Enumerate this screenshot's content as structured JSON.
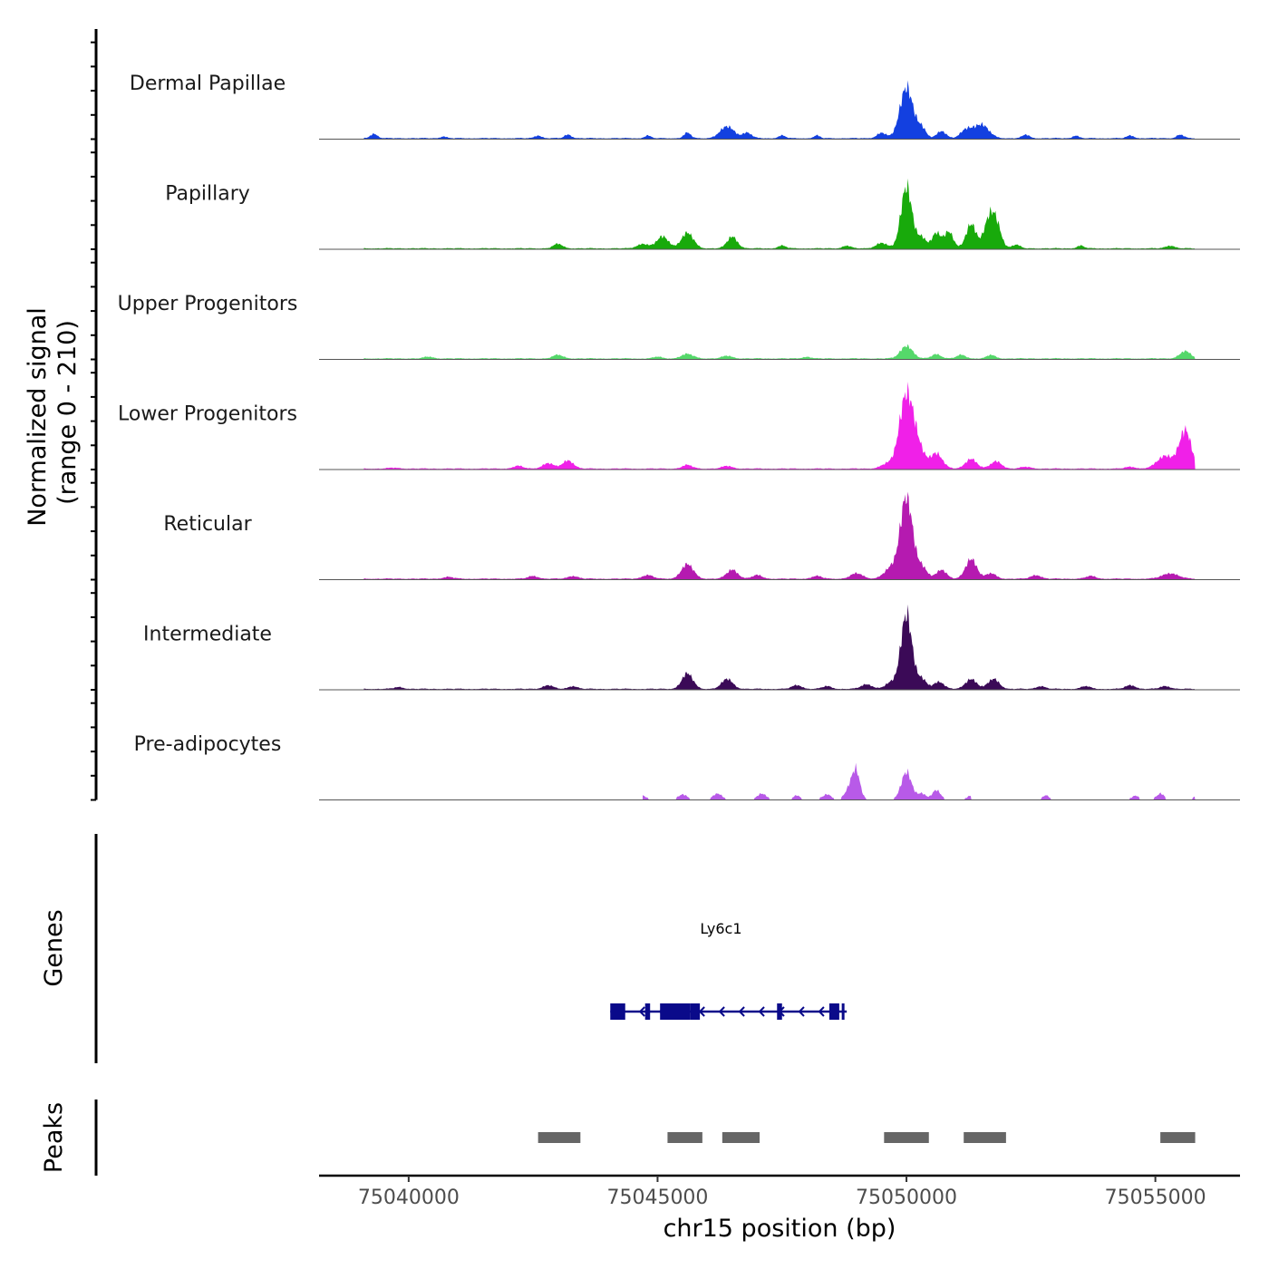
{
  "chart_data": {
    "type": "area",
    "title": "",
    "ylabel": "Normalized signal",
    "ylabel_range": "(range 0 - 210)",
    "xlabel": "chr15 position (bp)",
    "chromosome": "chr15",
    "xlim": [
      75038200,
      75056700
    ],
    "ylim": [
      0,
      210
    ],
    "x_ticks": [
      75040000,
      75045000,
      75050000,
      75055000
    ],
    "x_tick_labels": [
      "75040000",
      "75045000",
      "75050000",
      "75055000"
    ],
    "data_range": [
      75039100,
      75055800
    ],
    "tracks": [
      {
        "name": "Dermal Papillae",
        "color": "#1340e0",
        "peaks": [
          [
            75039300,
            0.05,
            70
          ],
          [
            75040700,
            0.02,
            60
          ],
          [
            75042600,
            0.03,
            70
          ],
          [
            75043200,
            0.04,
            70
          ],
          [
            75044800,
            0.03,
            60
          ],
          [
            75045600,
            0.06,
            70
          ],
          [
            75046400,
            0.13,
            140
          ],
          [
            75046800,
            0.06,
            90
          ],
          [
            75047500,
            0.03,
            70
          ],
          [
            75048200,
            0.03,
            60
          ],
          [
            75049500,
            0.06,
            90
          ],
          [
            75050000,
            0.56,
            130
          ],
          [
            75050300,
            0.11,
            90
          ],
          [
            75050700,
            0.08,
            90
          ],
          [
            75051200,
            0.09,
            110
          ],
          [
            75051500,
            0.15,
            150
          ],
          [
            75052400,
            0.04,
            70
          ],
          [
            75053400,
            0.03,
            60
          ],
          [
            75054500,
            0.03,
            70
          ],
          [
            75055500,
            0.04,
            70
          ]
        ]
      },
      {
        "name": "Papillary",
        "color": "#18aa0b",
        "peaks": [
          [
            75043000,
            0.05,
            90
          ],
          [
            75044700,
            0.05,
            110
          ],
          [
            75045100,
            0.13,
            120
          ],
          [
            75045600,
            0.17,
            120
          ],
          [
            75046500,
            0.13,
            100
          ],
          [
            75047500,
            0.03,
            80
          ],
          [
            75048800,
            0.03,
            80
          ],
          [
            75049500,
            0.06,
            110
          ],
          [
            75050000,
            0.68,
            110
          ],
          [
            75050300,
            0.12,
            90
          ],
          [
            75050600,
            0.17,
            90
          ],
          [
            75050850,
            0.18,
            90
          ],
          [
            75051300,
            0.27,
            100
          ],
          [
            75051650,
            0.28,
            100
          ],
          [
            75051800,
            0.26,
            100
          ],
          [
            75052200,
            0.04,
            80
          ],
          [
            75053500,
            0.03,
            70
          ],
          [
            75055300,
            0.03,
            90
          ]
        ]
      },
      {
        "name": "Upper Progenitors",
        "color": "#55d86a",
        "peaks": [
          [
            75040400,
            0.02,
            90
          ],
          [
            75043000,
            0.04,
            100
          ],
          [
            75045000,
            0.02,
            80
          ],
          [
            75045600,
            0.05,
            120
          ],
          [
            75046400,
            0.03,
            100
          ],
          [
            75048000,
            0.02,
            80
          ],
          [
            75050000,
            0.14,
            120
          ],
          [
            75050600,
            0.05,
            90
          ],
          [
            75051100,
            0.04,
            90
          ],
          [
            75051700,
            0.04,
            80
          ],
          [
            75055600,
            0.08,
            110
          ]
        ]
      },
      {
        "name": "Lower Progenitors",
        "color": "#f020e8",
        "peaks": [
          [
            75039700,
            0.01,
            100
          ],
          [
            75042200,
            0.03,
            100
          ],
          [
            75042800,
            0.06,
            110
          ],
          [
            75043200,
            0.09,
            110
          ],
          [
            75045600,
            0.04,
            100
          ],
          [
            75046400,
            0.03,
            100
          ],
          [
            75049600,
            0.05,
            120
          ],
          [
            75050000,
            0.82,
            140
          ],
          [
            75050250,
            0.18,
            120
          ],
          [
            75050600,
            0.17,
            120
          ],
          [
            75051300,
            0.11,
            110
          ],
          [
            75051800,
            0.08,
            110
          ],
          [
            75052400,
            0.02,
            100
          ],
          [
            75054500,
            0.02,
            100
          ],
          [
            75055200,
            0.14,
            160
          ],
          [
            75055600,
            0.42,
            120
          ]
        ]
      },
      {
        "name": "Reticular",
        "color": "#b51ab0",
        "peaks": [
          [
            75040800,
            0.02,
            100
          ],
          [
            75042500,
            0.03,
            100
          ],
          [
            75043300,
            0.03,
            100
          ],
          [
            75044800,
            0.04,
            110
          ],
          [
            75045600,
            0.16,
            120
          ],
          [
            75046500,
            0.1,
            110
          ],
          [
            75047000,
            0.04,
            100
          ],
          [
            75048200,
            0.03,
            100
          ],
          [
            75049000,
            0.06,
            120
          ],
          [
            75049700,
            0.12,
            140
          ],
          [
            75050000,
            0.9,
            120
          ],
          [
            75050300,
            0.13,
            110
          ],
          [
            75050700,
            0.1,
            100
          ],
          [
            75051300,
            0.22,
            110
          ],
          [
            75051700,
            0.06,
            100
          ],
          [
            75052600,
            0.04,
            100
          ],
          [
            75053700,
            0.03,
            100
          ],
          [
            75055300,
            0.06,
            160
          ]
        ]
      },
      {
        "name": "Intermediate",
        "color": "#3b0a57",
        "peaks": [
          [
            75039800,
            0.02,
            90
          ],
          [
            75042800,
            0.04,
            100
          ],
          [
            75043300,
            0.03,
            90
          ],
          [
            75045600,
            0.17,
            110
          ],
          [
            75046400,
            0.11,
            110
          ],
          [
            75047800,
            0.04,
            100
          ],
          [
            75048400,
            0.03,
            90
          ],
          [
            75049200,
            0.05,
            110
          ],
          [
            75049700,
            0.07,
            120
          ],
          [
            75050000,
            0.82,
            110
          ],
          [
            75050300,
            0.11,
            100
          ],
          [
            75050650,
            0.08,
            100
          ],
          [
            75051300,
            0.11,
            110
          ],
          [
            75051750,
            0.11,
            110
          ],
          [
            75052700,
            0.03,
            90
          ],
          [
            75053600,
            0.03,
            90
          ],
          [
            75054500,
            0.04,
            100
          ],
          [
            75055200,
            0.03,
            100
          ]
        ]
      },
      {
        "name": "Pre-adipocytes",
        "color": "#b85ae8",
        "visible_from": 75044700,
        "gaps": [
          [
            75047900,
            75048000
          ],
          [
            75051300,
            75052700
          ],
          [
            75053400,
            75054400
          ],
          [
            75055200,
            75055600
          ]
        ],
        "peaks": [
          [
            75044700,
            0.04,
            60
          ],
          [
            75045500,
            0.05,
            80
          ],
          [
            75046200,
            0.06,
            80
          ],
          [
            75047100,
            0.06,
            80
          ],
          [
            75047800,
            0.04,
            60
          ],
          [
            75048400,
            0.05,
            80
          ],
          [
            75048900,
            0.17,
            100
          ],
          [
            75049000,
            0.22,
            70
          ],
          [
            75050000,
            0.3,
            100
          ],
          [
            75050300,
            0.06,
            80
          ],
          [
            75050600,
            0.1,
            80
          ],
          [
            75051300,
            0.04,
            70
          ],
          [
            75052800,
            0.04,
            60
          ],
          [
            75054600,
            0.04,
            60
          ],
          [
            75055100,
            0.06,
            70
          ],
          [
            75055800,
            0.03,
            40
          ]
        ]
      }
    ],
    "genes": {
      "track_label": "Genes",
      "gene_name": "Ly6c1",
      "color": "#0a0a8a",
      "strand": "-",
      "start": 75044050,
      "end": 75048800,
      "exons": [
        [
          75044050,
          75044350
        ],
        [
          75044750,
          75044850
        ],
        [
          75045050,
          75045650
        ],
        [
          75045650,
          75045850
        ],
        [
          75047400,
          75047500
        ],
        [
          75048450,
          75048650
        ],
        [
          75048700,
          75048750
        ]
      ]
    },
    "peaks_track": {
      "track_label": "Peaks",
      "color": "#666666",
      "regions": [
        [
          75042600,
          75043450
        ],
        [
          75045200,
          75045900
        ],
        [
          75046300,
          75047050
        ],
        [
          75049550,
          75050450
        ],
        [
          75051150,
          75052000
        ],
        [
          75055100,
          75055800
        ]
      ]
    }
  }
}
